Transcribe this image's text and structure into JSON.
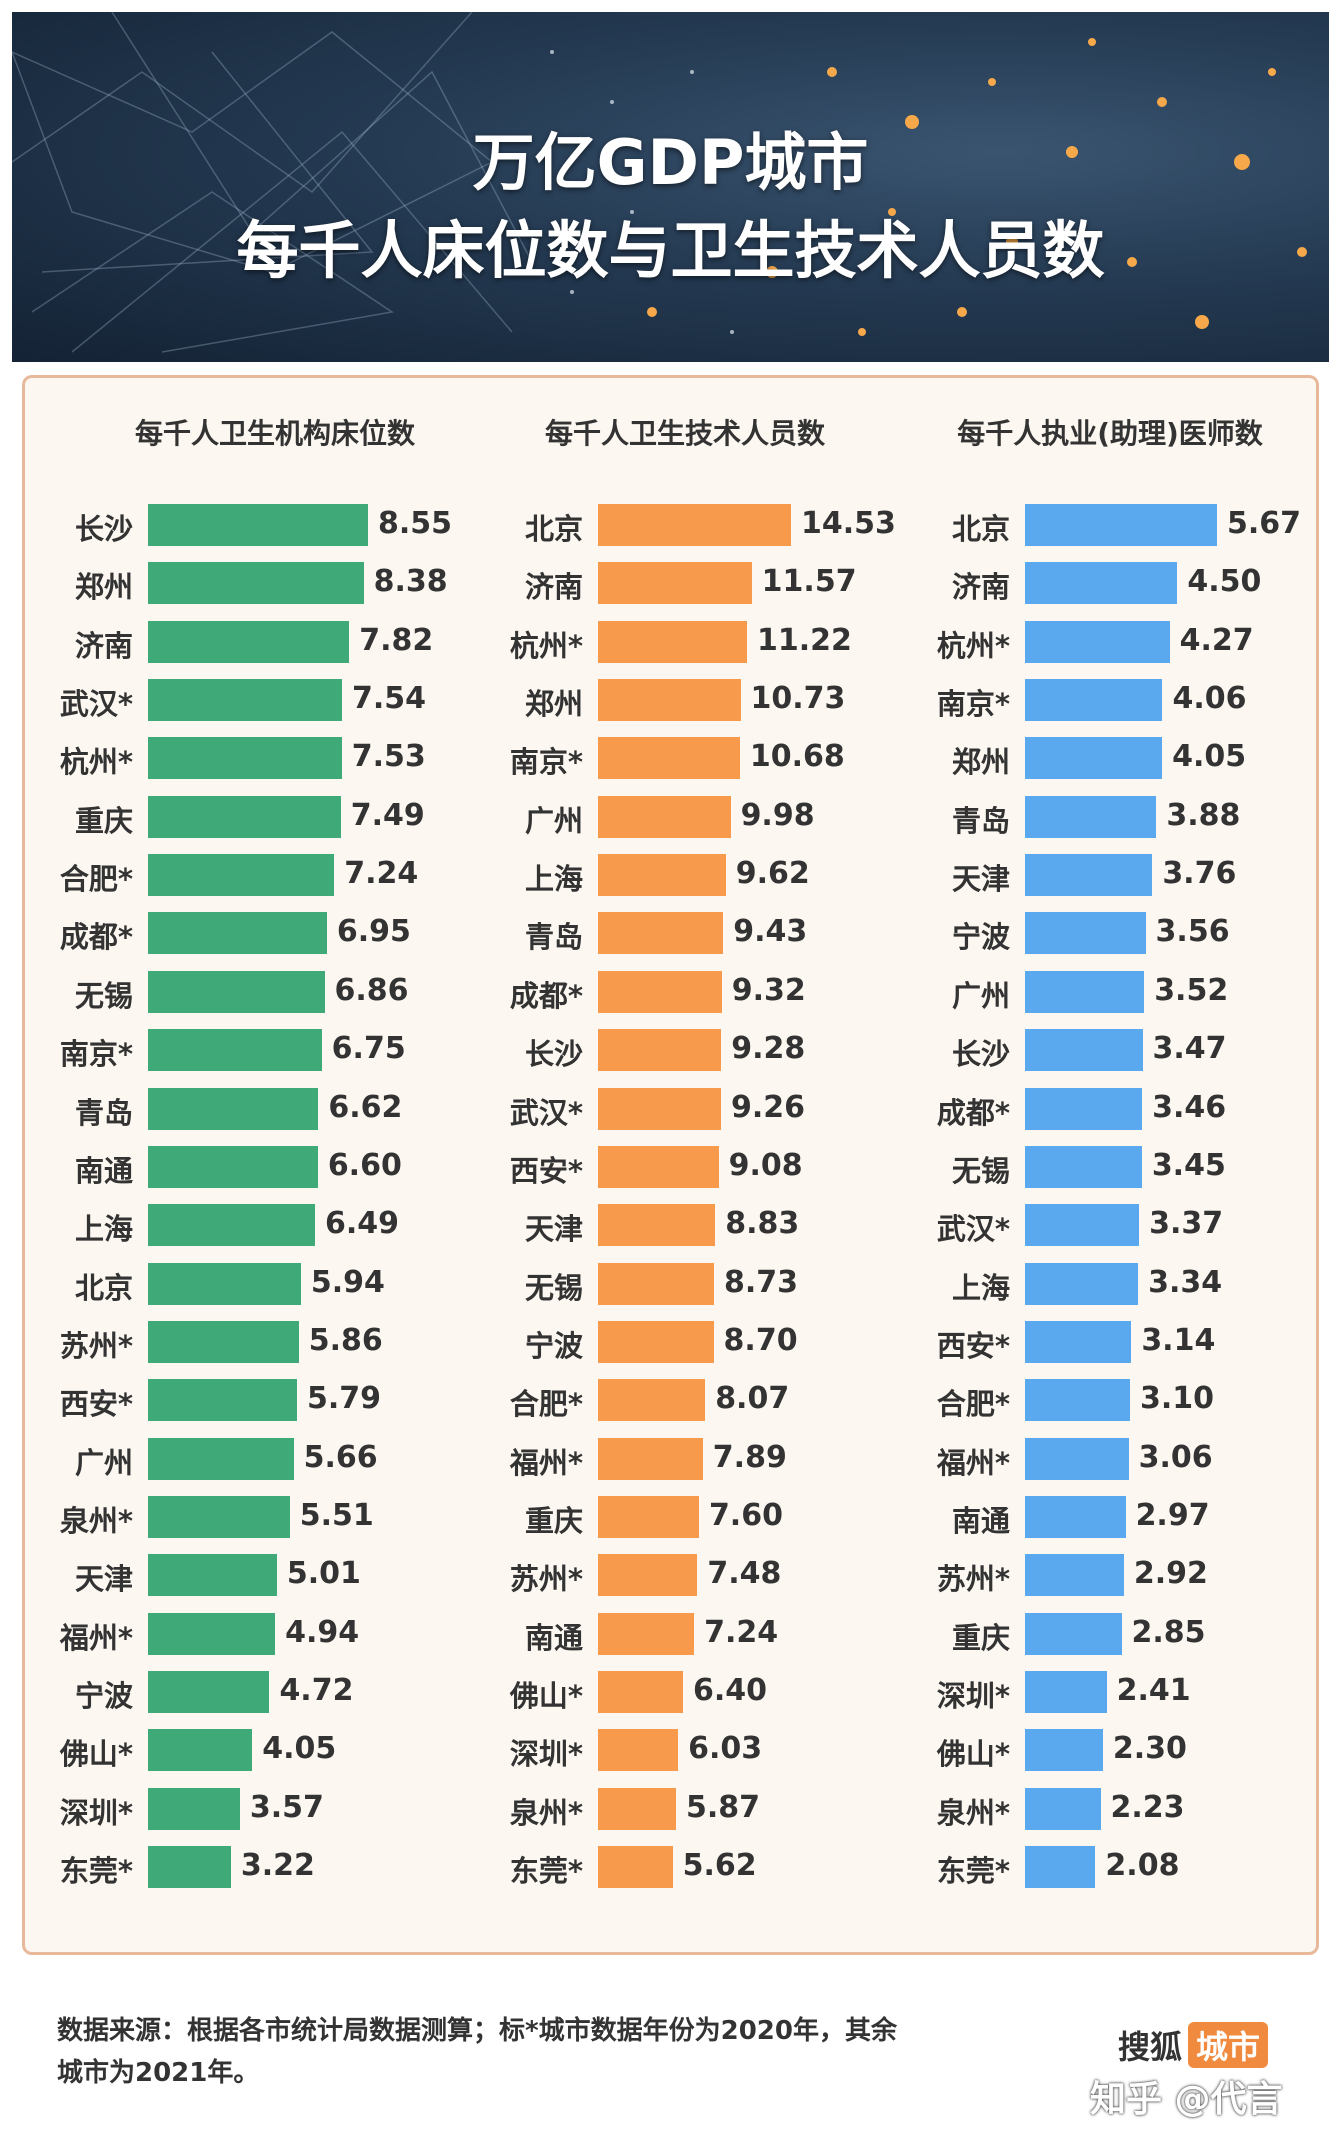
{
  "title_line1": "万亿GDP城市",
  "title_line2": "每千人床位数与卫生技术人员数",
  "colors": {
    "beds": "#3fa978",
    "tech": "#f79a4c",
    "doctors": "#5aa9ef"
  },
  "chart_data": [
    {
      "type": "bar",
      "title": "每千人卫生机构床位数",
      "categories": [
        "长沙",
        "郑州",
        "济南",
        "武汉*",
        "杭州*",
        "重庆",
        "合肥*",
        "成都*",
        "无锡",
        "南京*",
        "青岛",
        "南通",
        "上海",
        "北京",
        "苏州*",
        "西安*",
        "广州",
        "泉州*",
        "天津",
        "福州*",
        "宁波",
        "佛山*",
        "深圳*",
        "东莞*"
      ],
      "values": [
        8.55,
        8.38,
        7.82,
        7.54,
        7.53,
        7.49,
        7.24,
        6.95,
        6.86,
        6.75,
        6.62,
        6.6,
        6.49,
        5.94,
        5.86,
        5.79,
        5.66,
        5.51,
        5.01,
        4.94,
        4.72,
        4.05,
        3.57,
        3.22
      ],
      "labels": [
        "8.55",
        "8.38",
        "7.82",
        "7.54",
        "7.53",
        "7.49",
        "7.24",
        "6.95",
        "6.86",
        "6.75",
        "6.62",
        "6.60",
        "6.49",
        "5.94",
        "5.86",
        "5.79",
        "5.66",
        "5.51",
        "5.01",
        "4.94",
        "4.72",
        "4.05",
        "3.57",
        "3.22"
      ]
    },
    {
      "type": "bar",
      "title": "每千人卫生技术人员数",
      "categories": [
        "北京",
        "济南",
        "杭州*",
        "郑州",
        "南京*",
        "广州",
        "上海",
        "青岛",
        "成都*",
        "长沙",
        "武汉*",
        "西安*",
        "天津",
        "无锡",
        "宁波",
        "合肥*",
        "福州*",
        "重庆",
        "苏州*",
        "南通",
        "佛山*",
        "深圳*",
        "泉州*",
        "东莞*"
      ],
      "values": [
        14.53,
        11.57,
        11.22,
        10.73,
        10.68,
        9.98,
        9.62,
        9.43,
        9.32,
        9.28,
        9.26,
        9.08,
        8.83,
        8.73,
        8.7,
        8.07,
        7.89,
        7.6,
        7.48,
        7.24,
        6.4,
        6.03,
        5.87,
        5.62
      ],
      "labels": [
        "14.53",
        "11.57",
        "11.22",
        "10.73",
        "10.68",
        "9.98",
        "9.62",
        "9.43",
        "9.32",
        "9.28",
        "9.26",
        "9.08",
        "8.83",
        "8.73",
        "8.70",
        "8.07",
        "7.89",
        "7.60",
        "7.48",
        "7.24",
        "6.40",
        "6.03",
        "5.87",
        "5.62"
      ]
    },
    {
      "type": "bar",
      "title": "每千人执业(助理)医师数",
      "categories": [
        "北京",
        "济南",
        "杭州*",
        "南京*",
        "郑州",
        "青岛",
        "天津",
        "宁波",
        "广州",
        "长沙",
        "成都*",
        "无锡",
        "武汉*",
        "上海",
        "西安*",
        "合肥*",
        "福州*",
        "南通",
        "苏州*",
        "重庆",
        "深圳*",
        "佛山*",
        "泉州*",
        "东莞*"
      ],
      "values": [
        5.67,
        4.5,
        4.27,
        4.06,
        4.05,
        3.88,
        3.76,
        3.56,
        3.52,
        3.47,
        3.46,
        3.45,
        3.37,
        3.34,
        3.14,
        3.1,
        3.06,
        2.97,
        2.92,
        2.85,
        2.41,
        2.3,
        2.23,
        2.08
      ],
      "labels": [
        "5.67",
        "4.50",
        "4.27",
        "4.06",
        "4.05",
        "3.88",
        "3.76",
        "3.56",
        "3.52",
        "3.47",
        "3.46",
        "3.45",
        "3.37",
        "3.34",
        "3.14",
        "3.10",
        "3.06",
        "2.97",
        "2.92",
        "2.85",
        "2.41",
        "2.30",
        "2.23",
        "2.08"
      ]
    }
  ],
  "footnote_line1": "数据来源：根据各市统计局数据测算；标*城市数据年份为2020年，其余",
  "footnote_line2": "城市为2021年。",
  "brand_name": "搜狐",
  "brand_tag": "城市",
  "watermark": "知乎 @代言"
}
